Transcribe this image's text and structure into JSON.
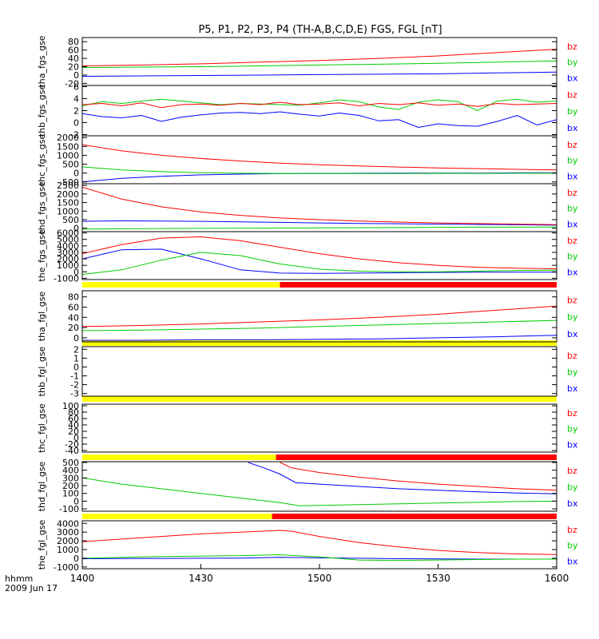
{
  "title": "P5, P1, P2, P3, P4 (TH-A,B,C,D,E) FGS, FGL [nT]",
  "colors": {
    "bx": "#0000ff",
    "by": "#00cc00",
    "bz": "#ff0000",
    "flag_yellow": "#ffff00",
    "flag_red": "#ff0000",
    "axis": "#000000"
  },
  "time_axis": {
    "label_line1": "hhmm",
    "label_line2": "2009 Jun 17",
    "ticks": [
      "1400",
      "1430",
      "1500",
      "1530",
      "1600"
    ]
  },
  "chart_data": [
    {
      "type": "line",
      "ylabel": "tha_fgs_gse",
      "yticks": [
        "-20",
        "0",
        "20",
        "40",
        "60",
        "80"
      ],
      "ylim": [
        -25,
        90
      ],
      "legend": [
        "bz",
        "by",
        "bx"
      ],
      "series": [
        {
          "name": "bz",
          "x": [
            0,
            15,
            30,
            45,
            60,
            75,
            90,
            105,
            120
          ],
          "y": [
            22,
            24,
            27,
            31,
            35,
            40,
            46,
            54,
            62
          ]
        },
        {
          "name": "by",
          "x": [
            0,
            15,
            30,
            45,
            60,
            75,
            90,
            105,
            120
          ],
          "y": [
            18,
            19,
            20,
            22,
            24,
            26,
            28,
            31,
            34
          ]
        },
        {
          "name": "bx",
          "x": [
            0,
            15,
            30,
            45,
            60,
            75,
            90,
            105,
            120
          ],
          "y": [
            -3,
            -2,
            -1,
            0,
            1,
            2,
            3,
            5,
            7
          ]
        }
      ]
    },
    {
      "type": "line",
      "ylabel": "thb_fgs_gse",
      "yticks": [
        "-2",
        "0",
        "2",
        "4",
        "6"
      ],
      "ylim": [
        -2.2,
        6.2
      ],
      "legend": [
        "bz",
        "by",
        "bx"
      ],
      "series": [
        {
          "name": "bz",
          "x": [
            0,
            5,
            10,
            15,
            20,
            25,
            30,
            35,
            40,
            45,
            50,
            55,
            60,
            65,
            70,
            75,
            80,
            85,
            90,
            95,
            100,
            105,
            110,
            115,
            120
          ],
          "y": [
            3,
            3.2,
            2.8,
            3.3,
            2.5,
            3,
            3.1,
            2.9,
            3.2,
            3,
            3.4,
            3,
            3.1,
            3.3,
            2.8,
            3.2,
            3,
            3.3,
            2.9,
            3.1,
            2.7,
            3.2,
            3,
            3.1,
            3.2
          ]
        },
        {
          "name": "by",
          "x": [
            0,
            5,
            10,
            15,
            20,
            25,
            30,
            35,
            40,
            45,
            50,
            55,
            60,
            65,
            70,
            75,
            80,
            85,
            90,
            95,
            100,
            105,
            110,
            115,
            120
          ],
          "y": [
            2.8,
            3.5,
            3.2,
            3.6,
            3.9,
            3.6,
            3.3,
            3,
            3.2,
            3.1,
            3,
            2.9,
            3.3,
            3.8,
            3.5,
            2.6,
            2.2,
            3.4,
            3.8,
            3.5,
            2,
            3.6,
            3.9,
            3.4,
            3.6
          ]
        },
        {
          "name": "bx",
          "x": [
            0,
            5,
            10,
            15,
            20,
            25,
            30,
            35,
            40,
            45,
            50,
            55,
            60,
            65,
            70,
            75,
            80,
            85,
            90,
            95,
            100,
            105,
            110,
            115,
            120
          ],
          "y": [
            1.5,
            1,
            0.8,
            1.2,
            0.2,
            0.9,
            1.3,
            1.6,
            1.7,
            1.5,
            1.8,
            1.4,
            1.1,
            1.6,
            1.2,
            0.3,
            0.5,
            -0.8,
            -0.2,
            -0.5,
            -0.6,
            0.2,
            1.2,
            -0.4,
            0.5
          ]
        }
      ]
    },
    {
      "type": "line",
      "ylabel": "thc_fgs_gse",
      "yticks": [
        "-500",
        "0",
        "500",
        "1000",
        "1500",
        "2000"
      ],
      "ylim": [
        -600,
        2100
      ],
      "legend": [
        "bz",
        "by",
        "bx"
      ],
      "series": [
        {
          "name": "bz",
          "x": [
            0,
            10,
            20,
            30,
            40,
            50,
            60,
            70,
            80,
            90,
            100,
            110,
            120
          ],
          "y": [
            1600,
            1250,
            1000,
            820,
            680,
            560,
            470,
            400,
            340,
            290,
            250,
            210,
            180
          ]
        },
        {
          "name": "by",
          "x": [
            0,
            10,
            20,
            30,
            40,
            50,
            60,
            70,
            80,
            90,
            100,
            110,
            120
          ],
          "y": [
            350,
            180,
            80,
            20,
            -10,
            -20,
            -30,
            -30,
            -30,
            -20,
            -20,
            -10,
            -10
          ]
        },
        {
          "name": "bx",
          "x": [
            0,
            10,
            20,
            30,
            40,
            50,
            60,
            70,
            80,
            90,
            100,
            110,
            120
          ],
          "y": [
            -500,
            -300,
            -180,
            -100,
            -60,
            -30,
            -20,
            -10,
            0,
            0,
            0,
            10,
            10
          ]
        }
      ]
    },
    {
      "type": "line",
      "ylabel": "thd_fgs_gse",
      "yticks": [
        "0",
        "500",
        "1000",
        "1500",
        "2000",
        "2500"
      ],
      "ylim": [
        -200,
        2600
      ],
      "legend": [
        "bz",
        "by",
        "bx"
      ],
      "series": [
        {
          "name": "bz",
          "x": [
            0,
            10,
            20,
            30,
            40,
            50,
            60,
            70,
            80,
            90,
            100,
            110,
            120
          ],
          "y": [
            2400,
            1700,
            1250,
            950,
            750,
            600,
            500,
            420,
            360,
            310,
            270,
            240,
            210
          ]
        },
        {
          "name": "by",
          "x": [
            0,
            10,
            20,
            30,
            40,
            50,
            60,
            70,
            80,
            90,
            100,
            110,
            120
          ],
          "y": [
            -50,
            -30,
            -20,
            -10,
            0,
            10,
            20,
            30,
            40,
            50,
            60,
            60,
            70
          ]
        },
        {
          "name": "bx",
          "x": [
            0,
            10,
            20,
            30,
            40,
            50,
            60,
            70,
            80,
            90,
            100,
            110,
            120
          ],
          "y": [
            400,
            430,
            420,
            400,
            370,
            340,
            310,
            280,
            260,
            240,
            220,
            200,
            180
          ]
        }
      ]
    },
    {
      "type": "line",
      "ylabel": "the_fgs_gse",
      "yticks": [
        "-1000",
        "0",
        "1000",
        "2000",
        "3000",
        "4000",
        "5000",
        "6000"
      ],
      "ylim": [
        -1200,
        6200
      ],
      "legend": [
        "bz",
        "by",
        "bx"
      ],
      "flag_bar": {
        "yellow_to_x": 50,
        "red_to_x": 120
      },
      "series": [
        {
          "name": "bz",
          "x": [
            0,
            10,
            20,
            30,
            40,
            50,
            60,
            70,
            80,
            90,
            100,
            110,
            120
          ],
          "y": [
            2800,
            4200,
            5200,
            5400,
            4800,
            3800,
            2800,
            2000,
            1400,
            1000,
            700,
            550,
            450
          ]
        },
        {
          "name": "by",
          "x": [
            0,
            10,
            20,
            30,
            40,
            50,
            60,
            70,
            80,
            90,
            100,
            110,
            120
          ],
          "y": [
            -400,
            300,
            1800,
            3000,
            2500,
            1200,
            400,
            100,
            0,
            0,
            100,
            200,
            250
          ]
        },
        {
          "name": "bx",
          "x": [
            0,
            10,
            20,
            30,
            40,
            50,
            60,
            70,
            80,
            90,
            100,
            110,
            120
          ],
          "y": [
            2000,
            3400,
            3500,
            2000,
            300,
            -200,
            -250,
            -200,
            -150,
            -100,
            -50,
            -50,
            -50
          ]
        }
      ]
    },
    {
      "type": "line",
      "ylabel": "tha_fgl_gse",
      "yticks": [
        "0",
        "20",
        "40",
        "60",
        "80"
      ],
      "ylim": [
        -8,
        92
      ],
      "legend": [
        "bz",
        "by",
        "bx"
      ],
      "flag_bar": {
        "yellow_to_x": 120,
        "red_to_x": 120
      },
      "series": [
        {
          "name": "bz",
          "x": [
            0,
            15,
            30,
            45,
            60,
            75,
            90,
            105,
            120
          ],
          "y": [
            22,
            24,
            27,
            31,
            35,
            40,
            46,
            54,
            62
          ]
        },
        {
          "name": "by",
          "x": [
            0,
            15,
            30,
            45,
            60,
            75,
            90,
            105,
            120
          ],
          "y": [
            14,
            15,
            17,
            19,
            22,
            25,
            28,
            31,
            34
          ]
        },
        {
          "name": "bx",
          "x": [
            0,
            15,
            30,
            45,
            60,
            75,
            90,
            105,
            120
          ],
          "y": [
            -5,
            -5,
            -4,
            -4,
            -3,
            -2,
            0,
            2,
            5
          ]
        }
      ]
    },
    {
      "type": "line",
      "ylabel": "thb_fgl_gse",
      "yticks": [
        "-3",
        "-2",
        "-1",
        "0",
        "1",
        "2"
      ],
      "ylim": [
        -3.3,
        2.3
      ],
      "legend": [
        "bz",
        "by",
        "bx"
      ],
      "flag_bar": {
        "yellow_to_x": 120,
        "red_to_x": 120
      },
      "series": []
    },
    {
      "type": "line",
      "ylabel": "thc_fgl_gse",
      "yticks": [
        "-40",
        "-20",
        "0",
        "20",
        "40",
        "60",
        "80",
        "100"
      ],
      "ylim": [
        -45,
        105
      ],
      "legend": [
        "bz",
        "by",
        "bx"
      ],
      "flag_bar": {
        "yellow_to_x": 49,
        "red_to_x": 120
      },
      "series": []
    },
    {
      "type": "line",
      "ylabel": "thd_fgl_gse",
      "yticks": [
        "-100",
        "0",
        "100",
        "200",
        "300",
        "400",
        "500"
      ],
      "ylim": [
        -130,
        510
      ],
      "legend": [
        "bz",
        "by",
        "bx"
      ],
      "flag_bar": {
        "yellow_to_x": 48,
        "red_to_x": 120
      },
      "series": [
        {
          "name": "bz",
          "x": [
            50,
            53,
            60,
            70,
            80,
            90,
            100,
            110,
            120
          ],
          "y": [
            500,
            430,
            370,
            310,
            260,
            220,
            190,
            160,
            140
          ]
        },
        {
          "name": "by",
          "x": [
            0,
            10,
            20,
            30,
            40,
            50,
            55,
            60,
            70,
            80,
            90,
            100,
            110,
            120
          ],
          "y": [
            300,
            220,
            160,
            100,
            40,
            -20,
            -60,
            -55,
            -45,
            -35,
            -25,
            -15,
            -5,
            0
          ]
        },
        {
          "name": "bx",
          "x": [
            42,
            46,
            50,
            54,
            60,
            70,
            80,
            90,
            100,
            110,
            120
          ],
          "y": [
            500,
            430,
            350,
            240,
            220,
            190,
            160,
            140,
            120,
            105,
            95
          ]
        }
      ]
    },
    {
      "type": "line",
      "ylabel": "the_fgl_gse",
      "yticks": [
        "-1000",
        "0",
        "1000",
        "2000",
        "3000",
        "4000"
      ],
      "ylim": [
        -1200,
        4300
      ],
      "legend": [
        "bz",
        "by",
        "bx"
      ],
      "series": [
        {
          "name": "bz",
          "x": [
            0,
            10,
            20,
            30,
            40,
            50,
            53,
            60,
            70,
            80,
            90,
            100,
            110,
            120
          ],
          "y": [
            1900,
            2200,
            2500,
            2800,
            3000,
            3200,
            3100,
            2500,
            1800,
            1300,
            900,
            650,
            500,
            420
          ]
        },
        {
          "name": "by",
          "x": [
            0,
            10,
            20,
            30,
            40,
            50,
            60,
            70,
            80,
            90,
            100,
            110,
            120
          ],
          "y": [
            0,
            100,
            200,
            250,
            300,
            400,
            150,
            -200,
            -250,
            -200,
            -150,
            -100,
            -100
          ]
        },
        {
          "name": "bx",
          "x": [
            0,
            10,
            20,
            30,
            40,
            50,
            60,
            70,
            80,
            90,
            100,
            110,
            120
          ],
          "y": [
            -50,
            -30,
            -20,
            0,
            20,
            100,
            50,
            0,
            -50,
            -80,
            -100,
            -100,
            -100
          ]
        }
      ]
    }
  ]
}
